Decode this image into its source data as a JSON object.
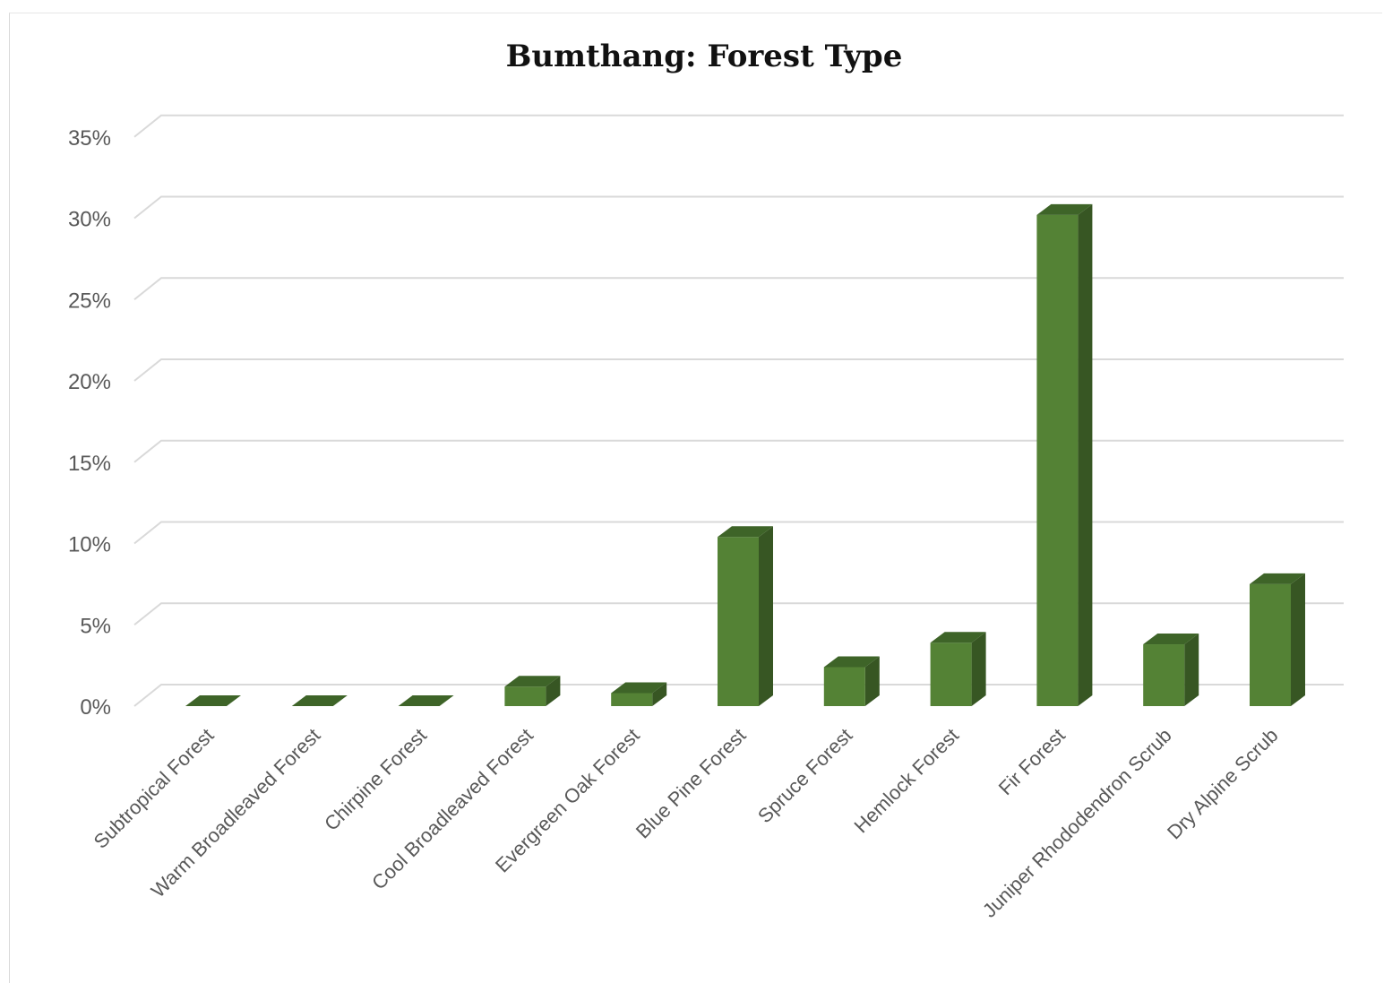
{
  "chart_data": {
    "type": "bar",
    "style": "3d-column",
    "title": "Bumthang: Forest Type",
    "xlabel": "",
    "ylabel": "",
    "categories": [
      "Subtropical Forest",
      "Warm Broadleaved Forest",
      "Chirpine Forest",
      "Cool Broadleaved Forest",
      "Evergreen Oak Forest",
      "Blue Pine Forest",
      "Spruce Forest",
      "Hemlock Forest",
      "Fir Forest",
      "Juniper Rhododendron Scrub",
      "Dry Alpine Scrub"
    ],
    "values": [
      0.0,
      0.0,
      0.0,
      1.2,
      0.8,
      10.4,
      2.4,
      3.9,
      30.2,
      3.8,
      7.5
    ],
    "ylim": [
      0,
      35
    ],
    "yticks": [
      "0%",
      "5%",
      "10%",
      "15%",
      "20%",
      "25%",
      "30%",
      "35%"
    ],
    "grid": true,
    "legend": "none",
    "colors": {
      "bar_front": "#548235",
      "bar_side": "#375623",
      "bar_top": "#3e6428",
      "grid": "#d9d9d9"
    }
  }
}
